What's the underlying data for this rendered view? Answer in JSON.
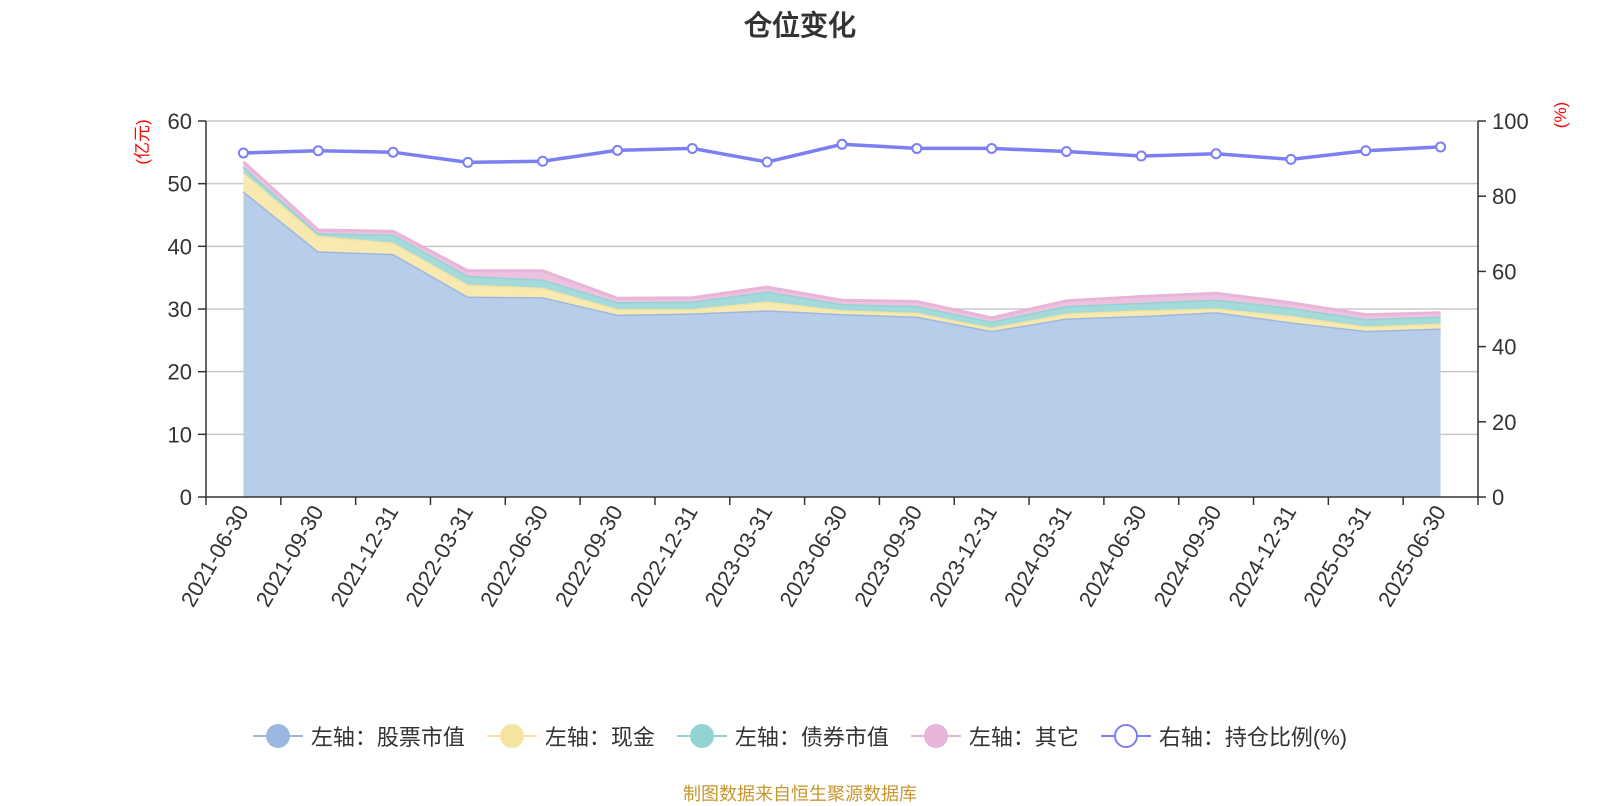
{
  "title": "仓位变化",
  "source": "制图数据来自恒生聚源数据库",
  "chart_data": {
    "type": "area",
    "title": "仓位变化",
    "x": [
      "2021-06-30",
      "2021-09-30",
      "2021-12-31",
      "2022-03-31",
      "2022-06-30",
      "2022-09-30",
      "2022-12-31",
      "2023-03-31",
      "2023-06-30",
      "2023-09-30",
      "2023-12-31",
      "2024-03-31",
      "2024-06-30",
      "2024-09-30",
      "2024-12-31",
      "2025-03-31",
      "2025-06-30"
    ],
    "left_axis": {
      "label": "(亿元)",
      "ylim": [
        0,
        60
      ],
      "ticks": [
        0,
        10,
        20,
        30,
        40,
        50,
        60
      ]
    },
    "right_axis": {
      "label": "(%)",
      "ylim": [
        0,
        100
      ],
      "ticks": [
        0,
        20,
        40,
        60,
        80,
        100
      ]
    },
    "stacked": true,
    "grid": true,
    "legend_position": "bottom",
    "series": [
      {
        "name": "左轴：股票市值",
        "axis": "left",
        "type": "area",
        "color": "#9db8e0",
        "fill": "#b8cdea",
        "values": [
          48.8,
          39.2,
          38.8,
          32.0,
          31.9,
          29.1,
          29.3,
          29.8,
          29.2,
          28.8,
          26.5,
          28.5,
          28.9,
          29.5,
          27.9,
          26.5,
          26.9
        ]
      },
      {
        "name": "左轴：现金",
        "axis": "left",
        "type": "area",
        "color": "#f5e3a0",
        "fill": "#f7e9b0",
        "values": [
          3.0,
          2.5,
          1.8,
          1.9,
          1.5,
          0.9,
          0.7,
          1.4,
          0.6,
          0.6,
          0.5,
          0.8,
          0.9,
          0.6,
          1.0,
          0.7,
          0.8
        ]
      },
      {
        "name": "左轴：债券市值",
        "axis": "left",
        "type": "area",
        "color": "#93d3d3",
        "fill": "#a4dada",
        "values": [
          0.9,
          0.4,
          1.3,
          1.4,
          1.3,
          1.1,
          1.2,
          1.6,
          1.0,
          1.1,
          1.0,
          1.2,
          1.2,
          1.4,
          1.3,
          1.2,
          1.1
        ]
      },
      {
        "name": "左轴：其它",
        "axis": "left",
        "type": "area",
        "color": "#e8b5d8",
        "fill": "#ecc2df",
        "values": [
          0.8,
          0.5,
          0.5,
          0.8,
          1.4,
          0.6,
          0.6,
          0.7,
          0.6,
          0.7,
          0.6,
          0.8,
          1.0,
          1.0,
          0.8,
          0.7,
          0.6
        ]
      },
      {
        "name": "右轴：持仓比例(%)",
        "axis": "right",
        "type": "line",
        "color": "#7b7ff2",
        "values": [
          91.5,
          92.1,
          91.7,
          89.0,
          89.3,
          92.2,
          92.7,
          89.1,
          93.8,
          92.7,
          92.7,
          91.9,
          90.7,
          91.3,
          89.8,
          92.1,
          93.1
        ]
      }
    ]
  }
}
